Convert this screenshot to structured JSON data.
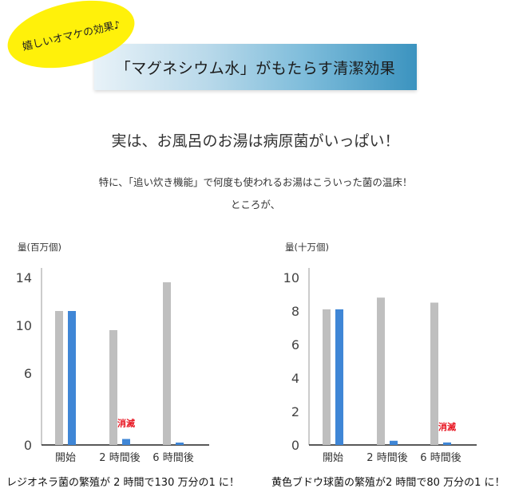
{
  "badge": {
    "text": "嬉しいオマケの効果♪"
  },
  "banner": {
    "title": "「マグネシウム水」がもたらす清潔効果"
  },
  "headline": "実は、お風呂のお湯は病原菌がいっぱい！",
  "sub1": "特に、「追い炊き機能」で何度も使われるお湯はこういった菌の温床！",
  "sub2": "ところが、",
  "colors": {
    "gray_bar": "#bfbfbf",
    "blue_bar": "#3f86d6",
    "annotation": "#e8131f",
    "badge": "#fff10a"
  },
  "chart_data": [
    {
      "type": "bar",
      "ylabel": "量(百万個)",
      "categories": [
        "開始",
        "2 時間後",
        "6 時間後"
      ],
      "ylim": [
        0,
        14
      ],
      "yticks": [
        0,
        6,
        10,
        14
      ],
      "series": [
        {
          "values": [
            11.2,
            9.6,
            13.6
          ]
        },
        {
          "values": [
            11.2,
            0.5,
            0.2
          ]
        }
      ],
      "annotation": {
        "text": "消滅",
        "category": 1
      },
      "caption": "レジオネラ菌の繁殖が 2 時間で130 万分の1 に！"
    },
    {
      "type": "bar",
      "ylabel": "量(十万個)",
      "categories": [
        "開始",
        "2 時間後",
        "6 時間後"
      ],
      "ylim": [
        0,
        10
      ],
      "yticks": [
        0,
        2,
        4,
        6,
        8,
        10
      ],
      "series": [
        {
          "values": [
            8.1,
            8.8,
            8.5
          ]
        },
        {
          "values": [
            8.1,
            0.25,
            0.15
          ]
        }
      ],
      "annotation": {
        "text": "消滅",
        "category": 2
      },
      "caption": "黄色ブドウ球菌の繁殖が2 時間で80 万分の1 に！"
    }
  ]
}
